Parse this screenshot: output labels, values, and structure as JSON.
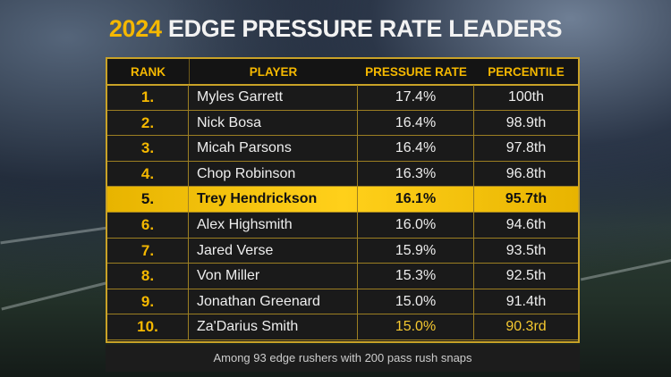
{
  "title": {
    "year": "2024",
    "text": "EDGE PRESSURE RATE LEADERS"
  },
  "colors": {
    "accent": "#f5b800",
    "highlight": "#ffd01a",
    "background": "#1a1a1a"
  },
  "columns": [
    "RANK",
    "PLAYER",
    "PRESSURE RATE",
    "PERCENTILE"
  ],
  "rows": [
    {
      "rank": "1.",
      "player": "Myles Garrett",
      "rate": "17.4%",
      "pct": "100th"
    },
    {
      "rank": "2.",
      "player": "Nick Bosa",
      "rate": "16.4%",
      "pct": "98.9th"
    },
    {
      "rank": "3.",
      "player": "Micah Parsons",
      "rate": "16.4%",
      "pct": "97.8th"
    },
    {
      "rank": "4.",
      "player": "Chop Robinson",
      "rate": "16.3%",
      "pct": "96.8th"
    },
    {
      "rank": "5.",
      "player": "Trey Hendrickson",
      "rate": "16.1%",
      "pct": "95.7th",
      "highlighted": true
    },
    {
      "rank": "6.",
      "player": "Alex Highsmith",
      "rate": "16.0%",
      "pct": "94.6th"
    },
    {
      "rank": "7.",
      "player": "Jared Verse",
      "rate": "15.9%",
      "pct": "93.5th"
    },
    {
      "rank": "8.",
      "player": "Von Miller",
      "rate": "15.3%",
      "pct": "92.5th"
    },
    {
      "rank": "9.",
      "player": "Jonathan Greenard",
      "rate": "15.0%",
      "pct": "91.4th"
    },
    {
      "rank": "10.",
      "player": "Za'Darius Smith",
      "rate": "15.0%",
      "pct": "90.3rd"
    }
  ],
  "footnote": "Among 93 edge rushers with 200 pass rush snaps"
}
